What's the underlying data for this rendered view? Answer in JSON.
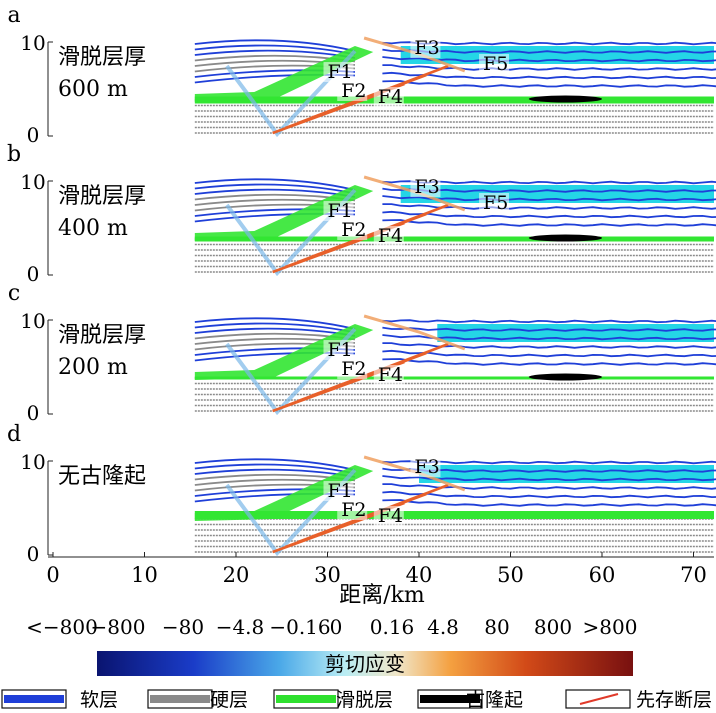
{
  "panels": [
    {
      "letter": "a",
      "title_line1": "滑脱层厚",
      "title_line2": "600 m",
      "faults": [
        "F1",
        "F2",
        "F3",
        "F4",
        "F5"
      ],
      "has_uplift": true
    },
    {
      "letter": "b",
      "title_line1": "滑脱层厚",
      "title_line2": "400 m",
      "faults": [
        "F1",
        "F2",
        "F3",
        "F4",
        "F5"
      ],
      "has_uplift": true
    },
    {
      "letter": "c",
      "title_line1": "滑脱层厚",
      "title_line2": "200 m",
      "faults": [
        "F1",
        "F2",
        "F4"
      ],
      "has_uplift": true
    },
    {
      "letter": "d",
      "title_line1": "无古隆起",
      "title_line2": "",
      "faults": [
        "F1",
        "F2",
        "F3",
        "F4"
      ],
      "has_uplift": false
    }
  ],
  "y_axis": {
    "ticks": [
      "0",
      "10"
    ]
  },
  "x_axis": {
    "ticks": [
      "0",
      "10",
      "20",
      "30",
      "40",
      "50",
      "60",
      "70"
    ],
    "label": "距离/km"
  },
  "colorbar": {
    "ticks": [
      "<−800",
      "−800",
      "−80",
      "−4.8",
      "−0.16",
      "0",
      "0.16",
      "4.8",
      "80",
      "800",
      ">800"
    ],
    "title": "剪切应变",
    "colors": {
      "low": "#0a1470",
      "mid": "#c8e6e6",
      "high": "#781010"
    }
  },
  "legend": [
    {
      "label": "软层",
      "color": "#1f3fd8"
    },
    {
      "label": "硬层",
      "color": "#8a8a8a"
    },
    {
      "label": "滑脱层",
      "color": "#2ee02e"
    },
    {
      "label": "古隆起",
      "color": "#000000"
    },
    {
      "label": "先存断层",
      "color": "#e03a2a"
    }
  ],
  "colors": {
    "water": "#24d6e6",
    "soft": "#1f3fd8",
    "hard": "#8a8a8a",
    "detach": "#32e632",
    "fault": "#e8602a"
  }
}
